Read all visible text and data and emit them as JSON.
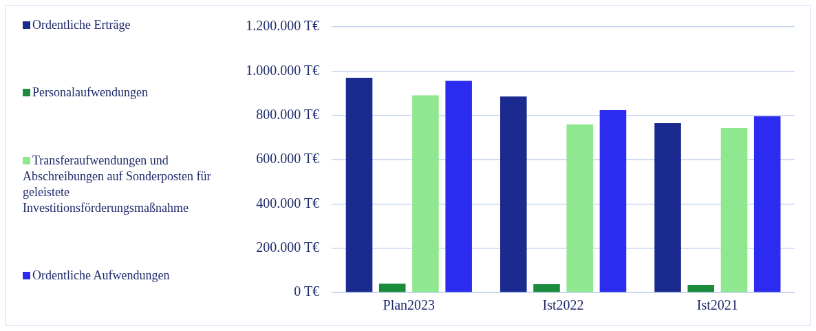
{
  "chart_data": {
    "type": "bar",
    "categories": [
      "Plan2023",
      "Ist2022",
      "Ist2021"
    ],
    "series": [
      {
        "name": "Ordentliche Erträge",
        "color": "#1b2a8e",
        "values": [
          970000,
          885000,
          765000
        ]
      },
      {
        "name": "Personalaufwendungen",
        "color": "#1a8c3c",
        "values": [
          40000,
          37000,
          34000
        ]
      },
      {
        "name": "Transferaufwendungen und Abschreibungen auf Sonderposten für geleistete Investitionsförderungsmaßnahme",
        "color": "#8fe88f",
        "values": [
          891000,
          759000,
          743000
        ]
      },
      {
        "name": "Ordentliche Aufwendungen",
        "color": "#2c2cf0",
        "values": [
          956000,
          824000,
          796000
        ]
      }
    ],
    "ylim": [
      0,
      1200000
    ],
    "yticks": [
      {
        "value": 0,
        "label": "0 T€"
      },
      {
        "value": 200000,
        "label": "200.000 T€"
      },
      {
        "value": 400000,
        "label": "400.000 T€"
      },
      {
        "value": 600000,
        "label": "600.000 T€"
      },
      {
        "value": 800000,
        "label": "800.000 T€"
      },
      {
        "value": 1000000,
        "label": "1.000.000 T€"
      },
      {
        "value": 1200000,
        "label": "1.200.000 T€"
      }
    ],
    "grid": "y",
    "legend": "left"
  }
}
